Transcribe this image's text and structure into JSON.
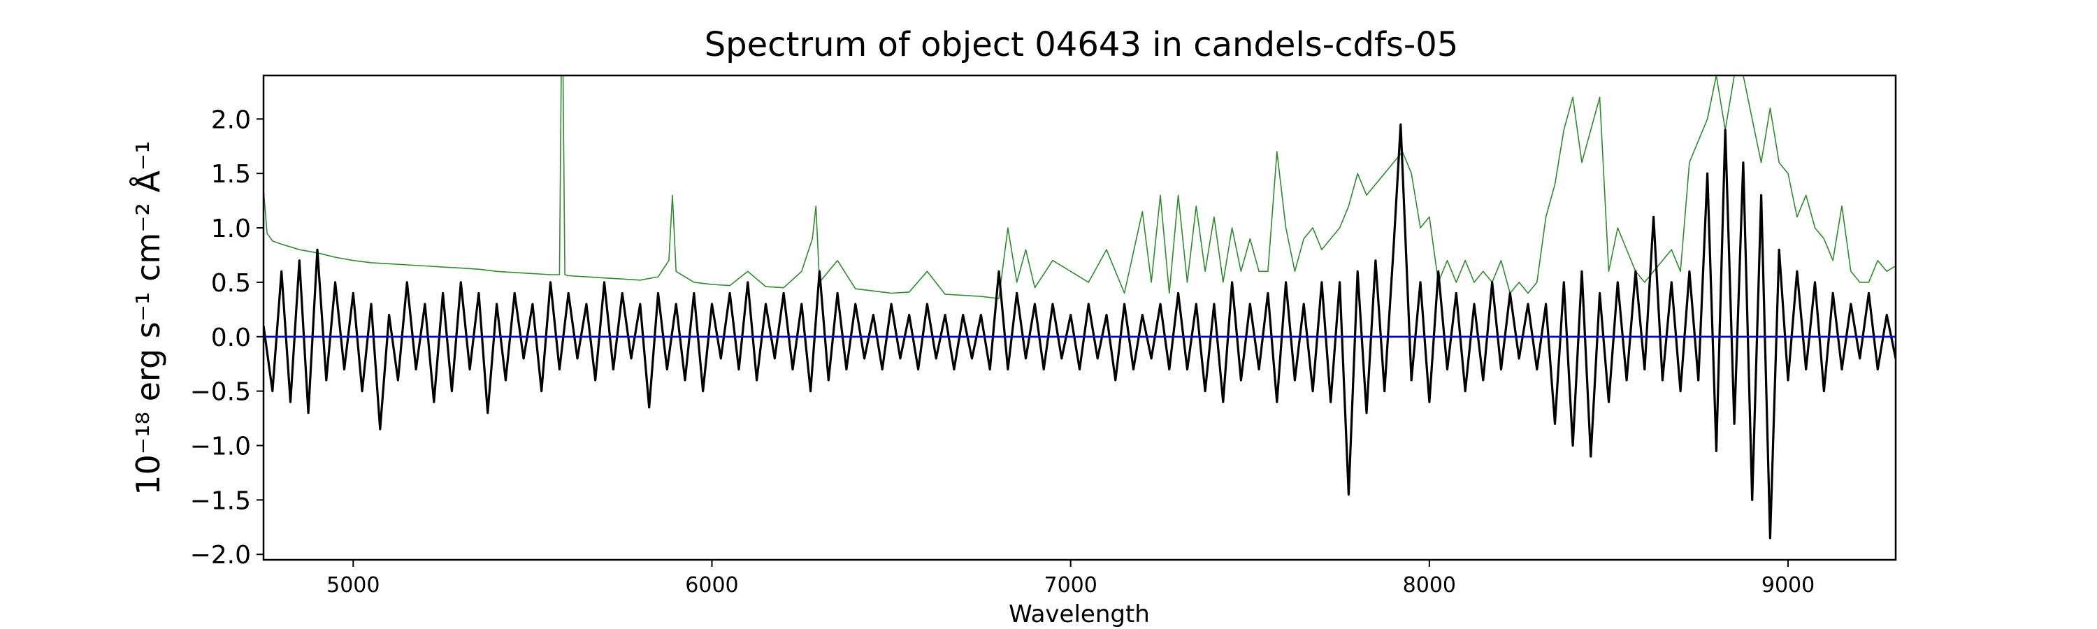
{
  "chart_data": {
    "type": "line",
    "title": "Spectrum of object 04643 in candels-cdfs-05",
    "xlabel": "Wavelength",
    "ylabel": "10⁻¹⁸ erg s⁻¹ cm⁻² Å⁻¹",
    "xlim": [
      4750,
      9300
    ],
    "ylim": [
      -2.05,
      2.4
    ],
    "x_ticks": [
      5000,
      6000,
      7000,
      8000,
      9000
    ],
    "y_ticks": [
      -2.0,
      -1.5,
      -1.0,
      -0.5,
      0.0,
      0.5,
      1.0,
      1.5,
      2.0
    ],
    "grid": false,
    "colors": {
      "flux": "#000000",
      "error": "#2e8b2e",
      "zero": "#0000cc"
    },
    "series": [
      {
        "key": "flux",
        "x": [
          4750,
          4775,
          4800,
          4825,
          4850,
          4875,
          4900,
          4925,
          4950,
          4975,
          5000,
          5025,
          5050,
          5075,
          5100,
          5125,
          5150,
          5175,
          5200,
          5225,
          5250,
          5275,
          5300,
          5325,
          5350,
          5375,
          5400,
          5425,
          5450,
          5475,
          5500,
          5525,
          5550,
          5575,
          5600,
          5625,
          5650,
          5675,
          5700,
          5725,
          5750,
          5775,
          5800,
          5825,
          5850,
          5875,
          5900,
          5925,
          5950,
          5975,
          6000,
          6025,
          6050,
          6075,
          6100,
          6125,
          6150,
          6175,
          6200,
          6225,
          6250,
          6275,
          6300,
          6325,
          6350,
          6375,
          6400,
          6425,
          6450,
          6475,
          6500,
          6525,
          6550,
          6575,
          6600,
          6625,
          6650,
          6675,
          6700,
          6725,
          6750,
          6775,
          6800,
          6825,
          6850,
          6875,
          6900,
          6925,
          6950,
          6975,
          7000,
          7025,
          7050,
          7075,
          7100,
          7125,
          7150,
          7175,
          7200,
          7225,
          7250,
          7275,
          7300,
          7325,
          7350,
          7375,
          7400,
          7425,
          7450,
          7475,
          7500,
          7525,
          7550,
          7575,
          7600,
          7625,
          7650,
          7675,
          7700,
          7725,
          7750,
          7775,
          7800,
          7825,
          7850,
          7875,
          7900,
          7920,
          7950,
          7975,
          8000,
          8025,
          8050,
          8075,
          8100,
          8125,
          8150,
          8175,
          8200,
          8225,
          8250,
          8275,
          8300,
          8325,
          8350,
          8375,
          8400,
          8425,
          8450,
          8475,
          8500,
          8525,
          8550,
          8575,
          8600,
          8625,
          8650,
          8675,
          8700,
          8725,
          8750,
          8775,
          8800,
          8825,
          8850,
          8875,
          8900,
          8925,
          8950,
          8975,
          9000,
          9025,
          9050,
          9075,
          9100,
          9125,
          9150,
          9175,
          9200,
          9225,
          9250,
          9275,
          9300
        ],
        "y": [
          0.1,
          -0.5,
          0.6,
          -0.6,
          0.7,
          -0.7,
          0.8,
          -0.4,
          0.5,
          -0.3,
          0.4,
          -0.5,
          0.3,
          -0.85,
          0.2,
          -0.4,
          0.5,
          -0.3,
          0.3,
          -0.6,
          0.4,
          -0.5,
          0.5,
          -0.3,
          0.4,
          -0.7,
          0.3,
          -0.4,
          0.4,
          -0.2,
          0.3,
          -0.5,
          0.5,
          -0.3,
          0.4,
          -0.2,
          0.3,
          -0.4,
          0.5,
          -0.3,
          0.4,
          -0.2,
          0.3,
          -0.65,
          0.4,
          -0.3,
          0.3,
          -0.4,
          0.4,
          -0.5,
          0.3,
          -0.2,
          0.4,
          -0.3,
          0.5,
          -0.4,
          0.3,
          -0.2,
          0.4,
          -0.3,
          0.3,
          -0.5,
          0.6,
          -0.4,
          0.4,
          -0.3,
          0.3,
          -0.2,
          0.2,
          -0.3,
          0.3,
          -0.2,
          0.2,
          -0.3,
          0.3,
          -0.2,
          0.2,
          -0.3,
          0.2,
          -0.2,
          0.2,
          -0.3,
          0.6,
          -0.3,
          0.4,
          -0.2,
          0.3,
          -0.3,
          0.3,
          -0.2,
          0.2,
          -0.3,
          0.3,
          -0.2,
          0.2,
          -0.4,
          0.3,
          -0.3,
          0.2,
          -0.2,
          0.3,
          -0.3,
          0.4,
          -0.3,
          0.3,
          -0.5,
          0.3,
          -0.6,
          0.5,
          -0.4,
          0.3,
          -0.3,
          0.4,
          -0.6,
          0.5,
          -0.4,
          0.3,
          -0.5,
          0.5,
          -0.6,
          0.5,
          -1.45,
          0.6,
          -0.7,
          0.7,
          -0.5,
          0.8,
          1.95,
          -0.4,
          0.5,
          -0.6,
          0.6,
          -0.3,
          0.4,
          -0.5,
          0.3,
          -0.4,
          0.5,
          -0.3,
          0.4,
          -0.2,
          0.3,
          -0.3,
          0.3,
          -0.8,
          0.5,
          -1.0,
          0.6,
          -1.1,
          0.4,
          -0.6,
          0.5,
          -0.4,
          0.6,
          -0.3,
          1.1,
          -0.4,
          0.5,
          -0.5,
          0.6,
          -0.4,
          1.5,
          -1.05,
          1.9,
          -0.8,
          1.6,
          -1.5,
          1.3,
          -1.85,
          0.8,
          -0.4,
          0.6,
          -0.3,
          0.5,
          -0.5,
          0.4,
          -0.3,
          0.3,
          -0.2,
          0.4,
          -0.3,
          0.2,
          -0.2
        ]
      },
      {
        "key": "error",
        "x": [
          4750,
          4760,
          4775,
          4800,
          4850,
          4900,
          4950,
          5000,
          5050,
          5100,
          5150,
          5200,
          5250,
          5300,
          5350,
          5400,
          5450,
          5500,
          5550,
          5575,
          5580,
          5585,
          5590,
          5600,
          5650,
          5700,
          5750,
          5800,
          5850,
          5880,
          5890,
          5900,
          5950,
          6000,
          6050,
          6100,
          6150,
          6200,
          6250,
          6280,
          6290,
          6300,
          6350,
          6400,
          6450,
          6500,
          6550,
          6600,
          6650,
          6700,
          6750,
          6800,
          6825,
          6850,
          6875,
          6900,
          6950,
          7000,
          7050,
          7100,
          7150,
          7200,
          7225,
          7250,
          7275,
          7300,
          7325,
          7350,
          7375,
          7400,
          7425,
          7450,
          7475,
          7500,
          7525,
          7550,
          7575,
          7600,
          7625,
          7650,
          7675,
          7700,
          7725,
          7750,
          7775,
          7800,
          7825,
          7850,
          7875,
          7900,
          7925,
          7950,
          7975,
          8000,
          8025,
          8050,
          8075,
          8100,
          8125,
          8150,
          8175,
          8200,
          8225,
          8250,
          8275,
          8300,
          8325,
          8350,
          8375,
          8400,
          8425,
          8450,
          8475,
          8500,
          8525,
          8550,
          8575,
          8600,
          8625,
          8650,
          8675,
          8700,
          8725,
          8750,
          8775,
          8800,
          8825,
          8850,
          8875,
          8900,
          8925,
          8950,
          8975,
          9000,
          9025,
          9050,
          9075,
          9100,
          9125,
          9150,
          9175,
          9200,
          9225,
          9250,
          9275,
          9300
        ],
        "y": [
          1.35,
          0.95,
          0.88,
          0.85,
          0.8,
          0.77,
          0.73,
          0.7,
          0.68,
          0.67,
          0.66,
          0.65,
          0.64,
          0.63,
          0.62,
          0.6,
          0.59,
          0.58,
          0.57,
          0.57,
          2.4,
          2.4,
          0.57,
          0.56,
          0.55,
          0.54,
          0.53,
          0.52,
          0.55,
          0.7,
          1.3,
          0.6,
          0.5,
          0.48,
          0.47,
          0.6,
          0.46,
          0.45,
          0.6,
          0.9,
          1.2,
          0.5,
          0.7,
          0.44,
          0.42,
          0.4,
          0.41,
          0.6,
          0.39,
          0.38,
          0.37,
          0.35,
          1.0,
          0.5,
          0.8,
          0.45,
          0.7,
          0.6,
          0.5,
          0.8,
          0.4,
          1.15,
          0.5,
          1.3,
          0.4,
          1.3,
          0.5,
          1.2,
          0.6,
          1.1,
          0.5,
          1.0,
          0.6,
          0.9,
          0.6,
          0.6,
          1.7,
          1.0,
          0.6,
          0.9,
          1.0,
          0.8,
          0.9,
          1.0,
          1.2,
          1.5,
          1.3,
          1.4,
          1.5,
          1.6,
          1.7,
          1.5,
          1.0,
          1.1,
          0.5,
          0.7,
          0.5,
          0.7,
          0.5,
          0.6,
          0.5,
          0.7,
          0.4,
          0.5,
          0.4,
          0.5,
          1.1,
          1.4,
          1.9,
          2.2,
          1.6,
          1.9,
          2.2,
          0.6,
          1.0,
          0.8,
          0.6,
          0.5,
          0.6,
          0.7,
          0.8,
          0.6,
          1.6,
          1.8,
          2.0,
          2.4,
          1.9,
          2.4,
          2.4,
          2.0,
          1.6,
          2.1,
          1.6,
          1.5,
          1.1,
          1.3,
          1.0,
          0.9,
          0.7,
          1.2,
          0.6,
          0.5,
          0.5,
          0.7,
          0.6,
          0.65
        ]
      },
      {
        "key": "zero",
        "x": [
          4750,
          9300
        ],
        "y": [
          0,
          0
        ]
      }
    ]
  }
}
